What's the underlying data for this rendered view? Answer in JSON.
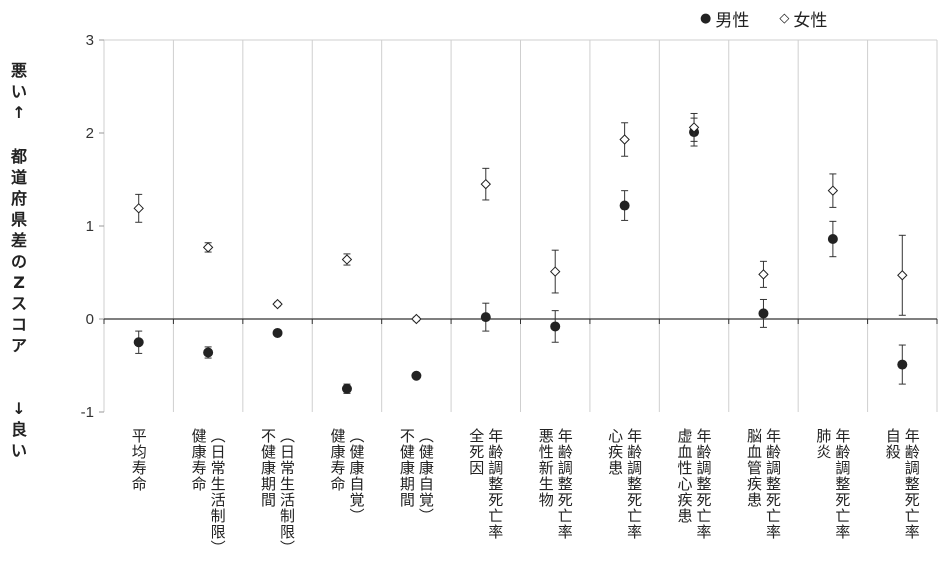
{
  "chart_data": {
    "type": "scatter",
    "categories": [
      [
        "平均寿命"
      ],
      [
        "健康寿命",
        "（日常生活制限）"
      ],
      [
        "不健康期間",
        "（日常生活制限）"
      ],
      [
        "健康寿命",
        "（健康自覚）"
      ],
      [
        "不健康期間",
        "（健康自覚）"
      ],
      [
        "全死因",
        "年齢調整死亡率"
      ],
      [
        "悪性新生物",
        "年齢調整死亡率"
      ],
      [
        "心疾患",
        "年齢調整死亡率"
      ],
      [
        "虚血性心疾患",
        "年齢調整死亡率"
      ],
      [
        "脳血管疾患",
        "年齢調整死亡率"
      ],
      [
        "肺炎",
        "年齢調整死亡率"
      ],
      [
        "自殺",
        "年齢調整死亡率"
      ]
    ],
    "series": [
      {
        "name": "男性",
        "marker": "filled-circle",
        "color": "#222222",
        "values": [
          -0.25,
          -0.36,
          -0.15,
          -0.75,
          -0.61,
          0.02,
          -0.08,
          1.22,
          2.01,
          0.06,
          0.86,
          -0.49
        ],
        "err": [
          0.12,
          0.06,
          0.03,
          0.05,
          0.02,
          0.15,
          0.17,
          0.16,
          0.15,
          0.15,
          0.19,
          0.21
        ]
      },
      {
        "name": "女性",
        "marker": "open-diamond",
        "color": "#222222",
        "values": [
          1.19,
          0.77,
          0.16,
          0.64,
          0.0,
          1.45,
          0.51,
          1.93,
          2.06,
          0.48,
          1.38,
          0.47
        ],
        "err": [
          0.15,
          0.05,
          0.02,
          0.06,
          0.02,
          0.17,
          0.23,
          0.18,
          0.15,
          0.14,
          0.18,
          0.43
        ]
      }
    ],
    "ylim": [
      -1,
      3
    ],
    "yticks": [
      "-1",
      "0",
      "1",
      "2",
      "3"
    ],
    "ylabel_top": [
      "悪",
      "い",
      "↑"
    ],
    "ylabel_mid": [
      "都",
      "道",
      "府",
      "県",
      "差",
      "の",
      "Z",
      "ス",
      "コ",
      "ア"
    ],
    "ylabel_bottom": [
      "↓",
      "良",
      "い"
    ],
    "legend_position": "top-right",
    "grid": "vertical category dividers"
  },
  "legend": {
    "male_marker": "●",
    "male_label": "男性",
    "female_marker": "◇",
    "female_label": "女性"
  }
}
